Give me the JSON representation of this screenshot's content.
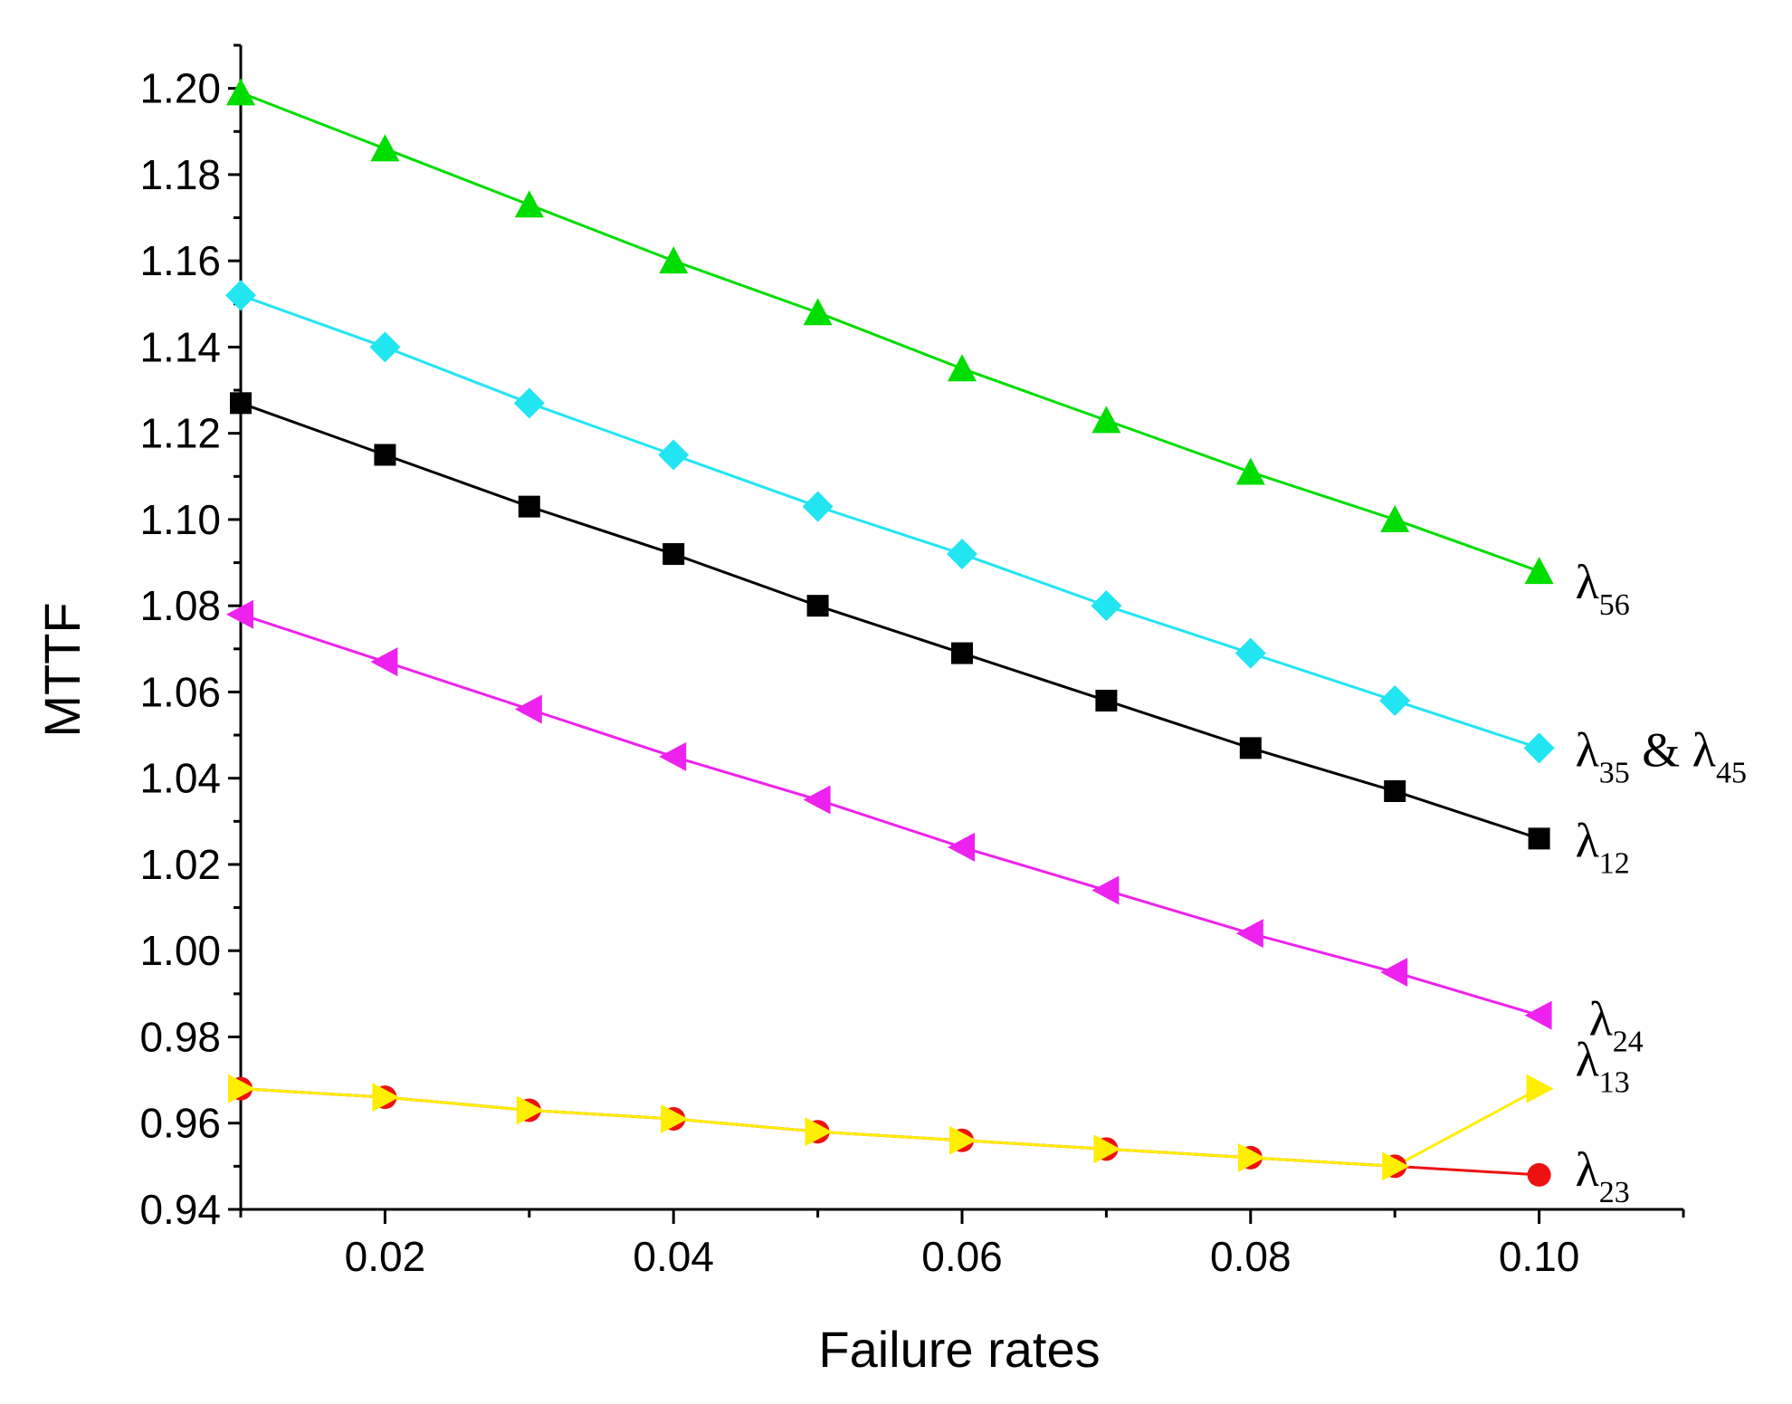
{
  "chart_data": {
    "type": "line",
    "title": "",
    "xlabel": "Failure rates",
    "ylabel": "MTTF",
    "xlim": [
      0.01,
      0.11
    ],
    "ylim": [
      0.94,
      1.21
    ],
    "x_ticks": [
      "0.02",
      "0.04",
      "0.06",
      "0.08",
      "0.10"
    ],
    "x_tick_values": [
      0.02,
      0.04,
      0.06,
      0.08,
      0.1
    ],
    "y_ticks": [
      "0.94",
      "0.96",
      "0.98",
      "1.00",
      "1.02",
      "1.04",
      "1.06",
      "1.08",
      "1.10",
      "1.12",
      "1.14",
      "1.16",
      "1.18",
      "1.20"
    ],
    "y_tick_values": [
      0.94,
      0.96,
      0.98,
      1.0,
      1.02,
      1.04,
      1.06,
      1.08,
      1.1,
      1.12,
      1.14,
      1.16,
      1.18,
      1.2
    ],
    "x": [
      0.01,
      0.02,
      0.03,
      0.04,
      0.05,
      0.06,
      0.07,
      0.08,
      0.09,
      0.1
    ],
    "series": [
      {
        "name": "λ56",
        "label_main": "λ",
        "label_sub": "56",
        "color": "#00dd00",
        "marker": "triangle-up",
        "values": [
          1.199,
          1.186,
          1.173,
          1.16,
          1.148,
          1.135,
          1.123,
          1.111,
          1.1,
          1.088
        ]
      },
      {
        "name": "λ35 & λ45",
        "label_main": "λ",
        "label_sub": "35",
        "label_mid": " & λ",
        "label_sub2": "45",
        "color": "#22e5f2",
        "marker": "diamond",
        "values": [
          1.152,
          1.14,
          1.127,
          1.115,
          1.103,
          1.092,
          1.08,
          1.069,
          1.058,
          1.047
        ]
      },
      {
        "name": "λ12",
        "label_main": "λ",
        "label_sub": "12",
        "color": "#000000",
        "marker": "square",
        "values": [
          1.127,
          1.115,
          1.103,
          1.092,
          1.08,
          1.069,
          1.058,
          1.047,
          1.037,
          1.026
        ]
      },
      {
        "name": "λ24",
        "label_main": "λ",
        "label_sub": "24",
        "color": "#ee22ee",
        "marker": "triangle-left",
        "values": [
          1.078,
          1.067,
          1.056,
          1.045,
          1.035,
          1.024,
          1.014,
          1.004,
          0.995,
          0.985
        ]
      },
      {
        "name": "λ23",
        "label_main": "λ",
        "label_sub": "23",
        "color": "#ee1111",
        "marker": "circle",
        "values": [
          0.968,
          0.966,
          0.963,
          0.961,
          0.958,
          0.956,
          0.954,
          0.952,
          0.95,
          0.948
        ]
      },
      {
        "name": "λ13",
        "label_main": "λ",
        "label_sub": "13",
        "color": "#ffee00",
        "marker": "triangle-right",
        "values": [
          0.968,
          0.966,
          0.963,
          0.961,
          0.958,
          0.956,
          0.954,
          0.952,
          0.95,
          0.968
        ]
      }
    ]
  }
}
